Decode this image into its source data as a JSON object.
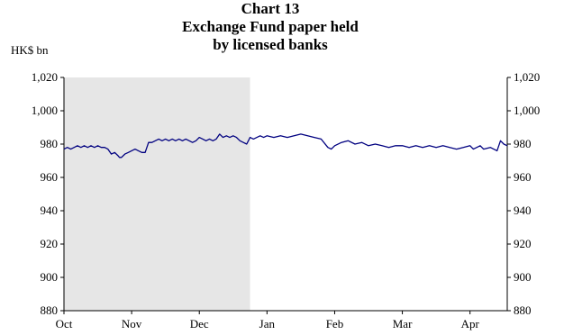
{
  "chart_data": {
    "type": "line",
    "title_line1": "Chart 13",
    "title_line2": "Exchange Fund paper held",
    "title_line3": "by licensed banks",
    "unit_label": "HK$ bn",
    "ylim": [
      880,
      1020
    ],
    "yticks": [
      880,
      900,
      920,
      940,
      960,
      980,
      1000,
      1020
    ],
    "ytick_labels": [
      "880",
      "900",
      "920",
      "940",
      "960",
      "980",
      "1,000",
      "1,020"
    ],
    "xlim": [
      0,
      6.55
    ],
    "xtick_labels": [
      {
        "x": 0,
        "label": "Oct"
      },
      {
        "x": 1,
        "label": "Nov"
      },
      {
        "x": 2,
        "label": "Dec"
      },
      {
        "x": 3,
        "label": "Jan"
      },
      {
        "x": 4,
        "label": "Feb"
      },
      {
        "x": 5,
        "label": "Mar"
      },
      {
        "x": 6,
        "label": "Apr"
      }
    ],
    "shaded_region": [
      0,
      2.75
    ],
    "grid": false,
    "line_color": "#000080",
    "shade_color": "#e6e6e6",
    "series": [
      {
        "x": [
          0,
          0.05,
          0.1,
          0.15,
          0.2,
          0.25,
          0.3,
          0.35,
          0.4,
          0.45,
          0.5,
          0.55,
          0.6,
          0.65,
          0.7,
          0.75,
          0.8,
          0.82,
          0.85,
          0.9,
          0.95,
          1.0,
          1.05,
          1.1,
          1.15,
          1.2,
          1.25,
          1.3,
          1.35,
          1.4,
          1.45,
          1.5,
          1.55,
          1.6,
          1.65,
          1.7,
          1.75,
          1.8,
          1.85,
          1.9,
          1.95,
          2.0,
          2.05,
          2.1,
          2.15,
          2.2,
          2.25,
          2.3,
          2.35,
          2.4,
          2.45,
          2.5,
          2.55,
          2.6,
          2.65,
          2.7,
          2.75,
          2.8,
          2.85,
          2.9,
          2.95,
          3.0,
          3.1,
          3.2,
          3.3,
          3.4,
          3.5,
          3.6,
          3.7,
          3.8,
          3.9,
          3.95,
          4.0,
          4.1,
          4.2,
          4.3,
          4.4,
          4.5,
          4.6,
          4.7,
          4.8,
          4.9,
          5.0,
          5.1,
          5.2,
          5.3,
          5.4,
          5.5,
          5.6,
          5.7,
          5.8,
          5.9,
          6.0,
          6.05,
          6.1,
          6.15,
          6.2,
          6.3,
          6.4,
          6.45,
          6.5,
          6.55
        ],
        "y": [
          977,
          978,
          977,
          978,
          979,
          978,
          979,
          978,
          979,
          978,
          979,
          978,
          978,
          977,
          974,
          975,
          973,
          972,
          972,
          974,
          975,
          976,
          977,
          976,
          975,
          975,
          981,
          981,
          982,
          983,
          982,
          983,
          982,
          983,
          982,
          983,
          982,
          983,
          982,
          981,
          982,
          984,
          983,
          982,
          983,
          982,
          983,
          986,
          984,
          985,
          984,
          985,
          984,
          982,
          981,
          980,
          984,
          983,
          984,
          985,
          984,
          985,
          984,
          985,
          984,
          985,
          986,
          985,
          984,
          983,
          978,
          977,
          979,
          981,
          982,
          980,
          981,
          979,
          980,
          979,
          978,
          979,
          979,
          978,
          979,
          978,
          979,
          978,
          979,
          978,
          977,
          978,
          979,
          977,
          978,
          979,
          977,
          978,
          976,
          982,
          980,
          979
        ]
      }
    ]
  }
}
